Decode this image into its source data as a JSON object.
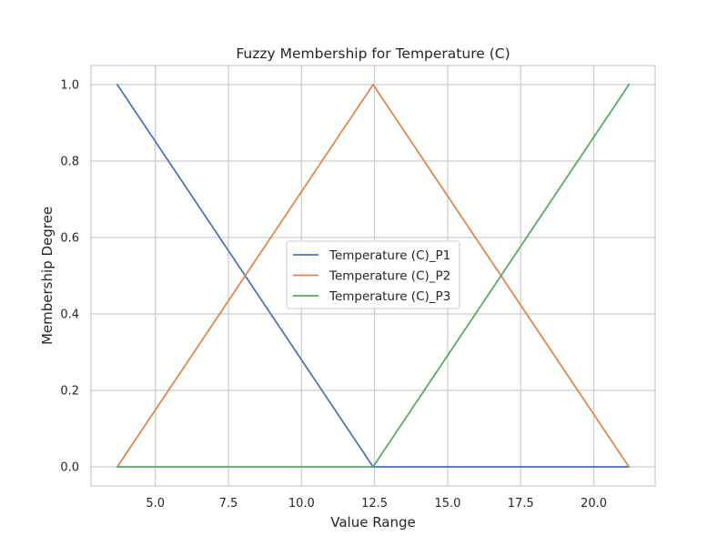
{
  "chart_data": {
    "type": "line",
    "title": "Fuzzy Membership for Temperature (C)",
    "xlabel": "Value Range",
    "ylabel": "Membership Degree",
    "xlim": [
      2.8,
      22.1
    ],
    "ylim": [
      -0.05,
      1.05
    ],
    "xticks": [
      5.0,
      7.5,
      10.0,
      12.5,
      15.0,
      17.5,
      20.0
    ],
    "xtick_labels": [
      "5.0",
      "7.5",
      "10.0",
      "12.5",
      "15.0",
      "17.5",
      "20.0"
    ],
    "yticks": [
      0.0,
      0.2,
      0.4,
      0.6,
      0.8,
      1.0
    ],
    "ytick_labels": [
      "0.0",
      "0.2",
      "0.4",
      "0.6",
      "0.8",
      "1.0"
    ],
    "grid": true,
    "legend_position": "center",
    "series": [
      {
        "name": "Temperature (C)_P1",
        "color": "#4c72b0",
        "x": [
          3.7,
          12.45,
          21.2
        ],
        "y": [
          1.0,
          0.0,
          0.0
        ]
      },
      {
        "name": "Temperature (C)_P2",
        "color": "#dd8452",
        "x": [
          3.7,
          12.45,
          21.2
        ],
        "y": [
          0.0,
          1.0,
          0.0
        ]
      },
      {
        "name": "Temperature (C)_P3",
        "color": "#55a868",
        "x": [
          3.7,
          12.45,
          21.2
        ],
        "y": [
          0.0,
          0.0,
          1.0
        ]
      }
    ]
  }
}
